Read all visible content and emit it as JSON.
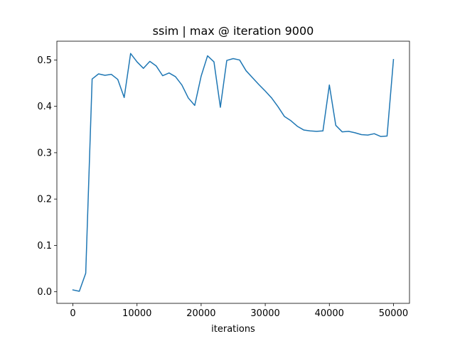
{
  "chart_data": {
    "type": "line",
    "title": "ssim | max @ iteration 9000",
    "xlabel": "iterations",
    "ylabel": "",
    "xlim": [
      -2500,
      52500
    ],
    "ylim": [
      -0.025,
      0.5405
    ],
    "xticks": [
      0,
      10000,
      20000,
      30000,
      40000,
      50000
    ],
    "xtick_labels": [
      "0",
      "10000",
      "20000",
      "30000",
      "40000",
      "50000"
    ],
    "yticks": [
      0.0,
      0.1,
      0.2,
      0.3,
      0.4,
      0.5
    ],
    "ytick_labels": [
      "0.0",
      "0.1",
      "0.2",
      "0.3",
      "0.4",
      "0.5"
    ],
    "grid": false,
    "legend": "none",
    "series": [
      {
        "color": "#1f77b4",
        "x": [
          0,
          1000,
          2000,
          3000,
          4000,
          5000,
          6000,
          7000,
          8000,
          9000,
          10000,
          11000,
          12000,
          13000,
          14000,
          15000,
          16000,
          17000,
          18000,
          19000,
          20000,
          21000,
          22000,
          23000,
          24000,
          25000,
          26000,
          27000,
          28000,
          29000,
          30000,
          31000,
          32000,
          33000,
          34000,
          35000,
          36000,
          37000,
          38000,
          39000,
          40000,
          41000,
          42000,
          43000,
          44000,
          45000,
          46000,
          47000,
          48000,
          49000,
          50000
        ],
        "values": [
          0.004,
          0.001,
          0.04,
          0.459,
          0.47,
          0.467,
          0.469,
          0.458,
          0.419,
          0.514,
          0.496,
          0.482,
          0.497,
          0.487,
          0.466,
          0.472,
          0.464,
          0.446,
          0.418,
          0.402,
          0.465,
          0.509,
          0.496,
          0.398,
          0.499,
          0.503,
          0.5,
          0.477,
          0.462,
          0.447,
          0.433,
          0.418,
          0.399,
          0.378,
          0.369,
          0.357,
          0.349,
          0.347,
          0.346,
          0.347,
          0.446,
          0.359,
          0.345,
          0.346,
          0.343,
          0.339,
          0.338,
          0.341,
          0.335,
          0.336,
          0.501
        ]
      }
    ]
  }
}
